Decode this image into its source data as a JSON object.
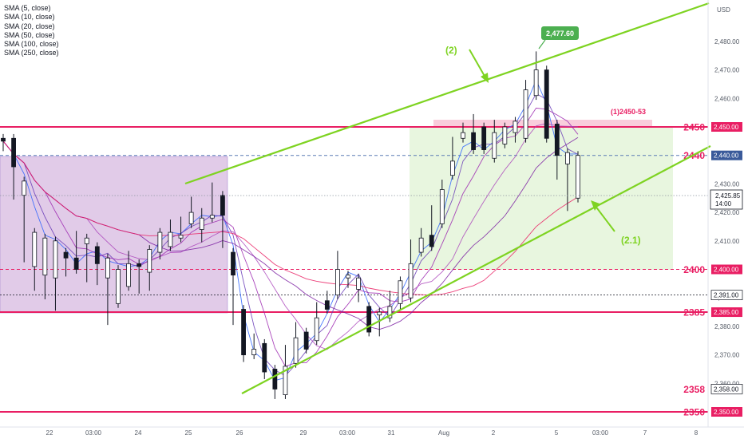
{
  "currency": "USD",
  "indicators": [
    "SMA (5, close)",
    "SMA (10, close)",
    "SMA (20, close)",
    "SMA (50, close)",
    "SMA (100, close)",
    "SMA (250, close)"
  ],
  "colors": {
    "level": "#e91e63",
    "trend": "#7ed321",
    "candle": "#131722",
    "box_purple": "#d7b9e0",
    "box_green": "#e6f5dc",
    "box_pink": "#f8c8d8",
    "sma": [
      "#2962ff",
      "#673ab7",
      "#9c27b0",
      "#ab47bc",
      "#7b1fa2",
      "#e91e63"
    ]
  },
  "chart_data": {
    "type": "candlestick",
    "ylim": [
      2344,
      2502
    ],
    "y_ticks": [
      2360,
      2370,
      2380,
      2390,
      2410,
      2420,
      2430,
      2460,
      2470,
      2480
    ],
    "x_labels": [
      "22",
      "03:00",
      "24",
      "25",
      "26",
      "29",
      "03:00",
      "31",
      "Aug",
      "2",
      "5",
      "03:00",
      "7",
      "8"
    ],
    "last_price": "2,425.85",
    "countdown": "14:00",
    "levels": [
      {
        "name": "2450",
        "price": 2450,
        "tag": "2,450.00",
        "style": "solid"
      },
      {
        "name": "2440",
        "price": 2440,
        "tag": "2,440.00",
        "style": "dashed-blue"
      },
      {
        "name": "2400",
        "price": 2400,
        "tag": "2,400.00",
        "style": "dashed"
      },
      {
        "name": "",
        "price": 2391,
        "tag": "2,391.00",
        "style": "dashed-dark"
      },
      {
        "name": "2385",
        "price": 2385,
        "tag": "2,385.00",
        "style": "solid"
      },
      {
        "name": "2358",
        "price": 2358,
        "tag": "2,358.00",
        "style": "none"
      },
      {
        "name": "2350",
        "price": 2350,
        "tag": "2,350.00",
        "style": "solid"
      }
    ],
    "annotations": {
      "high_label": "2,477.60",
      "zone_label": "(1)2450-53",
      "wave2": "(2)",
      "wave21": "(2.1)"
    },
    "candles": [
      [
        2446,
        2445,
        2445,
        2443
      ],
      [
        2446,
        2436,
        2430,
        2426
      ],
      [
        2426,
        2431,
        2412,
        2404
      ],
      [
        2401,
        2413,
        2412,
        2394
      ],
      [
        2398,
        2411,
        2409,
        2391
      ],
      [
        2397,
        2410,
        2404,
        2387
      ],
      [
        2406,
        2404,
        2405,
        2399
      ],
      [
        2404,
        2400,
        2411,
        2412
      ],
      [
        2409,
        2411,
        2410,
        2397
      ],
      [
        2408,
        2402,
        2405,
        2396
      ],
      [
        2397,
        2404,
        2396,
        2382
      ],
      [
        2388,
        2400,
        2391,
        2391
      ],
      [
        2394,
        2402,
        2405,
        2400
      ],
      [
        2402,
        2401,
        2398,
        2393
      ],
      [
        2399,
        2407,
        2405,
        2394
      ],
      [
        2406,
        2413,
        2405,
        2412
      ],
      [
        2408,
        2413,
        2416,
        2409
      ],
      [
        2411,
        2412,
        2416,
        2417
      ],
      [
        2416,
        2420,
        2418,
        2424
      ],
      [
        2414,
        2418,
        2420,
        2411
      ],
      [
        2418,
        2419,
        2424,
        2429
      ],
      [
        2426,
        2419,
        2422,
        2409
      ],
      [
        2406,
        2398,
        2394,
        2382
      ],
      [
        2386,
        2370,
        2369,
        2369
      ],
      [
        2370,
        2372,
        2376,
        2374
      ],
      [
        2374,
        2364,
        2368,
        2363
      ],
      [
        2365,
        2358,
        2359,
        2356
      ],
      [
        2356,
        2366,
        2363,
        2372
      ],
      [
        2367,
        2376,
        2373,
        2380
      ],
      [
        2378,
        2372,
        2372,
        2376
      ],
      [
        2375,
        2383,
        2383,
        2387
      ],
      [
        2389,
        2386,
        2391,
        2389
      ],
      [
        2391,
        2400,
        2405,
        2397
      ],
      [
        2397,
        2398,
        2395,
        2398
      ],
      [
        2393,
        2397,
        2391,
        2390
      ],
      [
        2387,
        2378,
        2383,
        2381
      ],
      [
        2384,
        2385,
        2381,
        2378
      ],
      [
        2383,
        2387,
        2384,
        2391
      ],
      [
        2388,
        2396,
        2387,
        2391
      ],
      [
        2390,
        2402,
        2403,
        2409
      ],
      [
        2406,
        2411,
        2413,
        2407
      ],
      [
        2412,
        2408,
        2419,
        2421
      ],
      [
        2416,
        2428,
        2430,
        2429
      ],
      [
        2433,
        2438,
        2434,
        2445
      ],
      [
        2446,
        2448,
        2450,
        2448
      ],
      [
        2448,
        2442,
        2448,
        2453
      ],
      [
        2450,
        2442,
        2445,
        2444
      ],
      [
        2439,
        2448,
        2447,
        2451
      ],
      [
        2444,
        2450,
        2449,
        2449
      ],
      [
        2448,
        2452,
        2452,
        2446
      ],
      [
        2446,
        2463,
        2465,
        2459
      ],
      [
        2461,
        2470,
        2475,
        2472
      ],
      [
        2470,
        2446,
        2446,
        2448
      ],
      [
        2451,
        2440,
        2436,
        2433
      ],
      [
        2437,
        2441,
        2432,
        2422
      ],
      [
        2425,
        2440,
        2432,
        2425
      ]
    ]
  }
}
